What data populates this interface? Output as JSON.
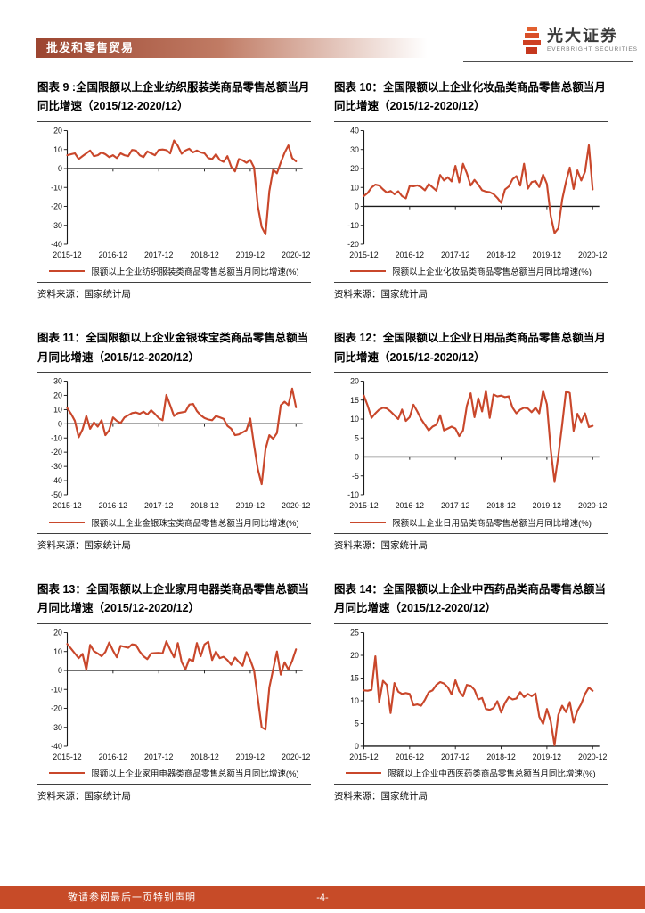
{
  "header": {
    "section_title": "批发和零售贸易",
    "brand_cn": "光大证券",
    "brand_en": "EVERBRIGHT SECURITIES"
  },
  "footer": {
    "disclaimer": "敬请参阅最后一页特别声明",
    "page_number": "-4-"
  },
  "colors": {
    "accent": "#C9472B",
    "header_gradient_from": "#9C4530",
    "header_gradient_mid": "#C07B64",
    "footer_bar": "#C74B28",
    "axis": "#1a1a1a"
  },
  "chart_data": [
    {
      "type": "line",
      "title": "图表 9 :全国限额以上企业纺织服装类商品零售总额当月同比增速（2015/12-2020/12）",
      "legend": "限额以上企业纺织服装类商品零售总额当月同比增速(%)",
      "source": "资料来源：国家统计局",
      "frequency": "monthly",
      "x_start": "2015-12",
      "x_end": "2020-12",
      "x_tick_labels": [
        "2015-12",
        "2016-12",
        "2017-12",
        "2018-12",
        "2019-12",
        "2020-12"
      ],
      "ylim": [
        -40,
        20
      ],
      "ytick_step": 10,
      "grid": false,
      "legend_position": "bottom",
      "values": [
        7.0,
        7.5,
        8.0,
        5.0,
        6.5,
        8.0,
        9.5,
        6.5,
        7.0,
        8.5,
        7.5,
        6.0,
        7.0,
        5.5,
        8.0,
        7.0,
        6.5,
        9.8,
        9.5,
        7.0,
        6.0,
        9.0,
        8.0,
        7.0,
        9.8,
        10.0,
        9.7,
        8.0,
        14.8,
        12.0,
        7.8,
        9.5,
        10.4,
        8.5,
        9.5,
        8.5,
        8.0,
        5.5,
        5.0,
        7.5,
        4.5,
        3.5,
        6.5,
        1.0,
        -1.5,
        5.0,
        4.3,
        3.0,
        4.5,
        0.5,
        -20.0,
        -30.9,
        -34.8,
        -12.0,
        -0.6,
        -2.5,
        3.2,
        8.3,
        12.2,
        5.5,
        3.8
      ]
    },
    {
      "type": "line",
      "title": "图表 10：全国限额以上企业化妆品类商品零售总额当月同比增速（2015/12-2020/12）",
      "legend": "限额以上企业化妆品类商品零售总额当月同比增速(%)",
      "source": "资料来源：国家统计局",
      "frequency": "monthly",
      "x_start": "2015-12",
      "x_end": "2020-12",
      "x_tick_labels": [
        "2015-12",
        "2016-12",
        "2017-12",
        "2018-12",
        "2019-12",
        "2020-12"
      ],
      "ylim": [
        -20,
        40
      ],
      "ytick_step": 10,
      "grid": false,
      "legend_position": "bottom",
      "values": [
        5.5,
        7.1,
        10.0,
        11.5,
        11.0,
        9.0,
        7.3,
        8.1,
        6.4,
        8.0,
        5.4,
        4.2,
        10.8,
        10.6,
        11.1,
        10.2,
        8.5,
        11.8,
        10.1,
        8.3,
        16.6,
        13.7,
        15.4,
        13.2,
        21.4,
        12.7,
        22.5,
        17.5,
        11.0,
        14.0,
        11.5,
        8.5,
        7.8,
        7.5,
        6.5,
        4.5,
        1.9,
        8.9,
        10.5,
        14.4,
        16.0,
        11.0,
        22.5,
        9.4,
        12.8,
        13.4,
        10.2,
        16.8,
        11.9,
        -5.0,
        -14.1,
        -11.6,
        3.5,
        12.9,
        20.5,
        9.2,
        19.0,
        13.7,
        18.3,
        32.3,
        9.0
      ]
    },
    {
      "type": "line",
      "title": "图表 11：全国限额以上企业金银珠宝类商品零售总额当月同比增速（2015/12-2020/12）",
      "legend": "限额以上企业金银珠宝类商品零售总额当月同比增速(%)",
      "source": "资料来源：国家统计局",
      "frequency": "monthly",
      "x_start": "2015-12",
      "x_end": "2020-12",
      "x_tick_labels": [
        "2015-12",
        "2016-12",
        "2017-12",
        "2018-12",
        "2019-12",
        "2020-12"
      ],
      "ylim": [
        -50,
        30
      ],
      "ytick_step": 10,
      "grid": false,
      "legend_position": "bottom",
      "values": [
        11.0,
        7.0,
        2.0,
        -9.5,
        -4.0,
        5.5,
        -3.5,
        1.0,
        -2.0,
        2.5,
        -8.0,
        -4.5,
        4.5,
        2.0,
        0.5,
        4.5,
        6.0,
        7.5,
        8.0,
        7.0,
        8.5,
        6.5,
        9.5,
        7.0,
        4.0,
        2.5,
        20.3,
        13.0,
        5.5,
        7.5,
        8.0,
        8.5,
        13.5,
        14.0,
        9.0,
        6.0,
        4.0,
        3.0,
        2.5,
        5.5,
        4.5,
        3.5,
        -1.5,
        -3.5,
        -8.0,
        -7.5,
        -6.0,
        -4.5,
        3.7,
        -15.0,
        -32.0,
        -42.5,
        -18.0,
        -8.0,
        -10.5,
        -6.5,
        13.0,
        15.5,
        13.1,
        24.8,
        11.6
      ]
    },
    {
      "type": "line",
      "title": "图表 12：全国限额以上企业日用品类商品零售总额当月同比增速（2015/12-2020/12）",
      "legend": "限额以上企业日用品类商品零售总额当月同比增速(%)",
      "source": "资料来源：国家统计局",
      "frequency": "monthly",
      "x_start": "2015-12",
      "x_end": "2020-12",
      "x_tick_labels": [
        "2015-12",
        "2016-12",
        "2017-12",
        "2018-12",
        "2019-12",
        "2020-12"
      ],
      "ylim": [
        -10,
        20
      ],
      "ytick_step": 5,
      "grid": false,
      "legend_position": "bottom",
      "values": [
        16.2,
        13.5,
        10.3,
        11.5,
        12.5,
        13.0,
        12.8,
        12.0,
        11.0,
        10.0,
        12.5,
        9.5,
        10.5,
        13.8,
        12.0,
        10.0,
        8.5,
        7.0,
        8.0,
        8.5,
        11.0,
        7.0,
        7.5,
        8.0,
        7.5,
        5.5,
        7.0,
        13.5,
        16.8,
        10.5,
        15.5,
        12.0,
        17.5,
        10.3,
        16.5,
        16.0,
        16.2,
        15.8,
        16.0,
        13.0,
        11.5,
        12.5,
        13.0,
        12.8,
        11.8,
        13.0,
        11.5,
        17.5,
        13.9,
        2.0,
        -6.6,
        0.3,
        8.5,
        17.3,
        16.9,
        6.9,
        11.4,
        9.2,
        11.5,
        7.9,
        8.2
      ]
    },
    {
      "type": "line",
      "title": "图表 13：全国限额以上企业家用电器类商品零售总额当月同比增速（2015/12-2020/12）",
      "legend": "限额以上企业家用电器类商品零售总额当月同比增速(%)",
      "source": "资料来源：国家统计局",
      "frequency": "monthly",
      "x_start": "2015-12",
      "x_end": "2020-12",
      "x_tick_labels": [
        "2015-12",
        "2016-12",
        "2017-12",
        "2018-12",
        "2019-12",
        "2020-12"
      ],
      "ylim": [
        -40,
        20
      ],
      "ytick_step": 10,
      "grid": false,
      "legend_position": "bottom",
      "values": [
        14.0,
        11.5,
        9.0,
        6.5,
        8.8,
        0.3,
        13.5,
        10.2,
        9.0,
        7.5,
        9.8,
        14.8,
        10.5,
        7.0,
        13.0,
        12.5,
        12.0,
        13.8,
        13.5,
        10.0,
        7.5,
        6.0,
        9.0,
        9.2,
        9.3,
        9.0,
        15.4,
        11.0,
        7.0,
        14.5,
        4.5,
        0.5,
        6.0,
        4.8,
        14.5,
        7.5,
        13.8,
        15.2,
        5.5,
        10.0,
        6.5,
        7.2,
        5.5,
        3.0,
        6.8,
        4.5,
        2.5,
        9.7,
        5.6,
        0.0,
        -15.0,
        -30.0,
        -31.1,
        -9.0,
        0.5,
        10.0,
        -2.2,
        4.3,
        0.5,
        5.1,
        11.2
      ]
    },
    {
      "type": "line",
      "title": "图表 14：全国限额以上企业中西药品类商品零售总额当月同比增速（2015/12-2020/12）",
      "legend": "限额以上企业中西医药类商品零售总额当月同比增速(%)",
      "source": "资料来源：国家统计局",
      "frequency": "monthly",
      "x_start": "2015-12",
      "x_end": "2020-12",
      "x_tick_labels": [
        "2015-12",
        "2016-12",
        "2017-12",
        "2018-12",
        "2019-12",
        "2020-12"
      ],
      "ylim": [
        0,
        25
      ],
      "ytick_step": 5,
      "grid": false,
      "legend_position": "bottom",
      "values": [
        12.3,
        12.2,
        12.4,
        19.8,
        9.7,
        14.4,
        13.5,
        7.3,
        13.9,
        12.0,
        11.5,
        11.7,
        11.5,
        9.0,
        9.2,
        8.9,
        10.2,
        11.9,
        12.3,
        13.5,
        14.1,
        13.8,
        13.0,
        11.4,
        14.5,
        12.1,
        11.0,
        13.5,
        13.3,
        12.4,
        10.3,
        10.6,
        8.2,
        8.0,
        8.4,
        9.9,
        7.4,
        9.5,
        10.8,
        10.3,
        10.5,
        11.9,
        10.8,
        11.5,
        11.0,
        11.6,
        6.5,
        4.9,
        8.2,
        5.5,
        0.2,
        6.9,
        8.9,
        7.5,
        9.7,
        5.2,
        7.8,
        9.3,
        11.5,
        12.9,
        12.2
      ]
    }
  ]
}
